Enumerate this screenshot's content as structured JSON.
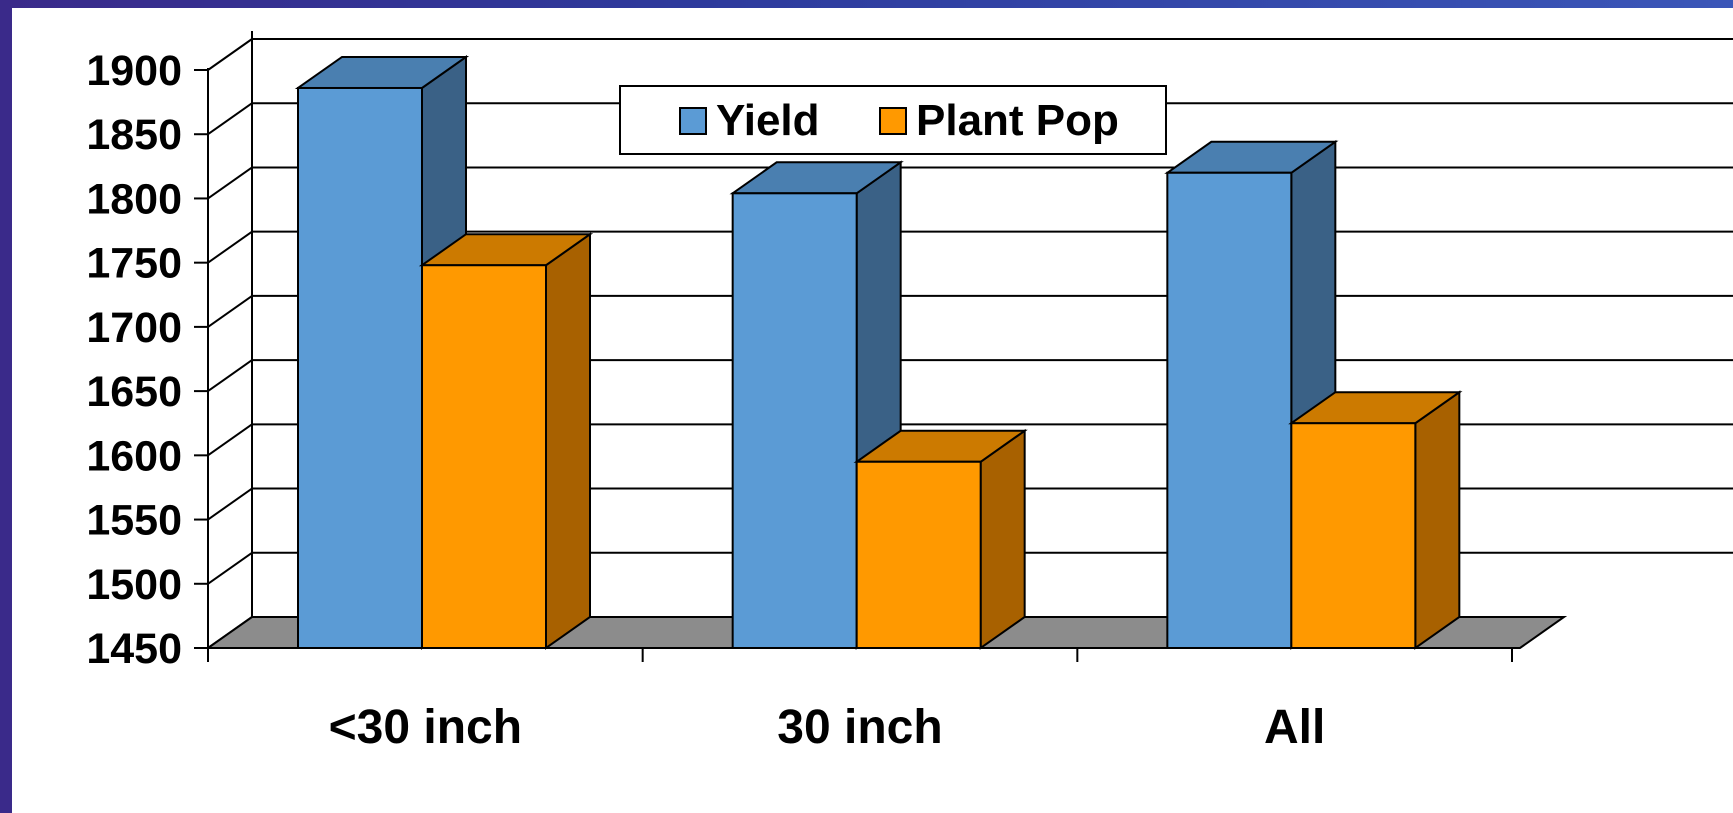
{
  "chart_data": {
    "type": "bar",
    "categories": [
      "<30 inch",
      "30 inch",
      "All"
    ],
    "series": [
      {
        "name": "Yield",
        "values": [
          1886,
          1804,
          1820
        ],
        "color": "#5b9bd5",
        "top_color": "#4a7fb0",
        "side_color": "#3a6186"
      },
      {
        "name": "Plant Pop",
        "values": [
          1748,
          1595,
          1625
        ],
        "color": "#ff9900",
        "top_color": "#cc7a00",
        "side_color": "#a86100"
      }
    ],
    "ylim": [
      1450,
      1900
    ],
    "yticks": [
      "1450",
      "1500",
      "1550",
      "1600",
      "1650",
      "1700",
      "1750",
      "1800",
      "1850",
      "1900"
    ],
    "grid": true,
    "legend_position": "top-center",
    "title": "",
    "xlabel": "",
    "ylabel": ""
  },
  "colors": {
    "background_frame": "#2d3a9c",
    "floor": "#8c8c8c"
  }
}
